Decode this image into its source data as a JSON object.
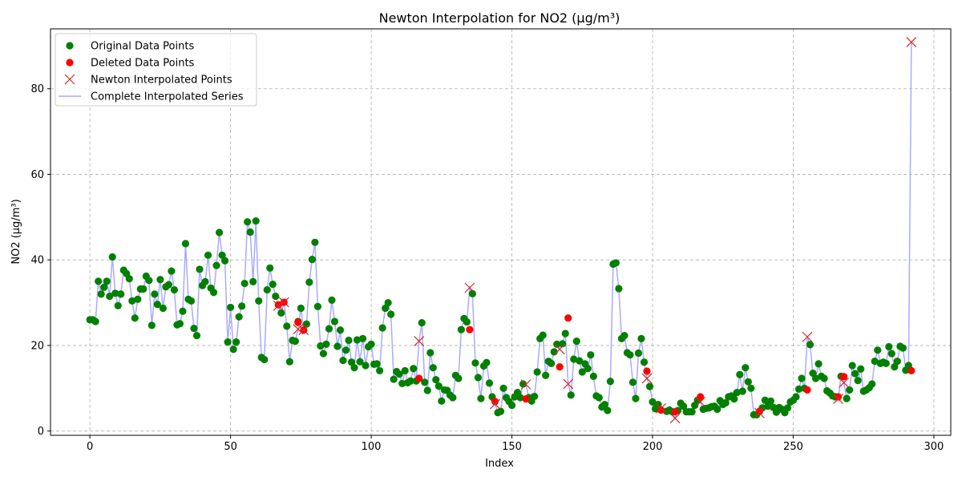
{
  "chart_data": {
    "type": "line",
    "title": "Newton Interpolation for NO2 (μg/m³)",
    "xlabel": "Index",
    "ylabel": "NO2 (μg/m³)",
    "xlim": [
      -14,
      306
    ],
    "ylim": [
      -1,
      94
    ],
    "xticks": [
      0,
      50,
      100,
      150,
      200,
      250,
      300
    ],
    "yticks": [
      0,
      20,
      40,
      60,
      80
    ],
    "grid": true,
    "legend_position": "upper-left",
    "colors": {
      "original": "#008000",
      "deleted": "#ff0000",
      "newton": "#d62728",
      "complete": "#aaaaff"
    },
    "legend": [
      {
        "label": "Original Data Points",
        "key": "original",
        "marker": "dot"
      },
      {
        "label": "Deleted Data Points",
        "key": "deleted",
        "marker": "dot"
      },
      {
        "label": "Newton Interpolated Points",
        "key": "newton",
        "marker": "x"
      },
      {
        "label": "Complete Interpolated Series",
        "key": "complete",
        "marker": "line"
      }
    ],
    "original_points": [
      [
        0,
        26
      ],
      [
        1,
        26
      ],
      [
        2,
        25.6
      ],
      [
        3,
        35
      ],
      [
        4,
        32
      ],
      [
        5,
        33.6
      ],
      [
        6,
        35
      ],
      [
        7,
        31.5
      ],
      [
        8,
        40.7
      ],
      [
        9,
        32.2
      ],
      [
        10,
        29.3
      ],
      [
        11,
        32
      ],
      [
        12,
        37.6
      ],
      [
        13,
        36.8
      ],
      [
        14,
        35.6
      ],
      [
        15,
        30.4
      ],
      [
        16,
        26.4
      ],
      [
        17,
        30.8
      ],
      [
        18,
        33.2
      ],
      [
        19,
        33.2
      ],
      [
        20,
        36.2
      ],
      [
        21,
        35.2
      ],
      [
        22,
        24.7
      ],
      [
        23,
        32
      ],
      [
        24,
        29.6
      ],
      [
        25,
        35.4
      ],
      [
        26,
        28.7
      ],
      [
        27,
        33.7
      ],
      [
        28,
        34.2
      ],
      [
        29,
        37.4
      ],
      [
        30,
        33
      ],
      [
        31,
        24.8
      ],
      [
        32,
        25.1
      ],
      [
        33,
        28
      ],
      [
        34,
        43.8
      ],
      [
        35,
        30.8
      ],
      [
        36,
        30.4
      ],
      [
        37,
        24
      ],
      [
        38,
        22.3
      ],
      [
        39,
        37.8
      ],
      [
        40,
        34
      ],
      [
        41,
        34.9
      ],
      [
        42,
        41.1
      ],
      [
        43,
        33.4
      ],
      [
        44,
        32.4
      ],
      [
        45,
        38.7
      ],
      [
        46,
        46.4
      ],
      [
        47,
        41.1
      ],
      [
        48,
        39.8
      ],
      [
        49,
        20.8
      ],
      [
        50,
        28.9
      ],
      [
        51,
        19.1
      ],
      [
        52,
        20.8
      ],
      [
        53,
        26.7
      ],
      [
        54,
        29.2
      ],
      [
        55,
        34.5
      ],
      [
        56,
        48.9
      ],
      [
        57,
        46.5
      ],
      [
        58,
        34.9
      ],
      [
        59,
        49.1
      ],
      [
        60,
        30.4
      ],
      [
        61,
        17.2
      ],
      [
        62,
        16.7
      ],
      [
        63,
        33
      ],
      [
        64,
        38.1
      ],
      [
        65,
        34.3
      ],
      [
        66,
        31.5
      ],
      [
        68,
        27.6
      ],
      [
        70,
        24.5
      ],
      [
        71,
        16.2
      ],
      [
        72,
        21.2
      ],
      [
        73,
        21
      ],
      [
        74,
        25.6
      ],
      [
        75,
        28.7
      ],
      [
        77,
        25
      ],
      [
        78,
        34.8
      ],
      [
        79,
        40.1
      ],
      [
        80,
        44.1
      ],
      [
        81,
        29.1
      ],
      [
        82,
        19.9
      ],
      [
        83,
        18.1
      ],
      [
        84,
        20.3
      ],
      [
        85,
        23.9
      ],
      [
        86,
        30.6
      ],
      [
        87,
        25.6
      ],
      [
        88,
        19.8
      ],
      [
        89,
        23.6
      ],
      [
        90,
        16.5
      ],
      [
        91,
        18.9
      ],
      [
        92,
        21.2
      ],
      [
        93,
        16.1
      ],
      [
        94,
        14.8
      ],
      [
        95,
        21.3
      ],
      [
        96,
        16.2
      ],
      [
        97,
        21.6
      ],
      [
        98,
        15.3
      ],
      [
        99,
        19.7
      ],
      [
        100,
        20.3
      ],
      [
        101,
        15.6
      ],
      [
        102,
        15.7
      ],
      [
        103,
        14.1
      ],
      [
        104,
        24.1
      ],
      [
        105,
        28.7
      ],
      [
        106,
        30
      ],
      [
        107,
        27.3
      ],
      [
        108,
        12.1
      ],
      [
        109,
        13.9
      ],
      [
        110,
        13.3
      ],
      [
        111,
        11.1
      ],
      [
        112,
        14.1
      ],
      [
        113,
        11.3
      ],
      [
        114,
        11.7
      ],
      [
        115,
        14.6
      ],
      [
        116,
        11.7
      ],
      [
        118,
        25.3
      ],
      [
        119,
        11.4
      ],
      [
        120,
        9.5
      ],
      [
        121,
        18.3
      ],
      [
        122,
        14.8
      ],
      [
        123,
        12
      ],
      [
        124,
        10.5
      ],
      [
        125,
        7
      ],
      [
        126,
        9.6
      ],
      [
        127,
        9.5
      ],
      [
        128,
        8.4
      ],
      [
        129,
        7.8
      ],
      [
        130,
        13
      ],
      [
        131,
        12.3
      ],
      [
        132,
        23.7
      ],
      [
        133,
        26.3
      ],
      [
        134,
        25.5
      ],
      [
        136,
        32.1
      ],
      [
        137,
        15.9
      ],
      [
        138,
        12.5
      ],
      [
        139,
        7.6
      ],
      [
        140,
        15.2
      ],
      [
        141,
        16
      ],
      [
        142,
        11.2
      ],
      [
        143,
        8
      ],
      [
        145,
        4.3
      ],
      [
        146,
        4.6
      ],
      [
        147,
        10
      ],
      [
        148,
        7.8
      ],
      [
        149,
        6.9
      ],
      [
        150,
        6
      ],
      [
        151,
        8
      ],
      [
        152,
        9
      ],
      [
        153,
        7.8
      ],
      [
        154,
        11
      ],
      [
        156,
        7.8
      ],
      [
        157,
        7
      ],
      [
        158,
        8.1
      ],
      [
        159,
        13.8
      ],
      [
        160,
        21.6
      ],
      [
        161,
        22.4
      ],
      [
        162,
        13
      ],
      [
        163,
        16.3
      ],
      [
        164,
        15.8
      ],
      [
        165,
        18.5
      ],
      [
        166,
        20.3
      ],
      [
        168,
        20.4
      ],
      [
        169,
        22.8
      ],
      [
        171,
        8.4
      ],
      [
        172,
        16.8
      ],
      [
        173,
        21
      ],
      [
        174,
        16.4
      ],
      [
        175,
        13.8
      ],
      [
        176,
        15.7
      ],
      [
        177,
        14.6
      ],
      [
        178,
        17.8
      ],
      [
        179,
        12.8
      ],
      [
        180,
        8.2
      ],
      [
        181,
        7.8
      ],
      [
        182,
        5.6
      ],
      [
        183,
        6.2
      ],
      [
        184,
        4.8
      ],
      [
        185,
        11.6
      ],
      [
        186,
        39
      ],
      [
        187,
        39.3
      ],
      [
        188,
        33.3
      ],
      [
        189,
        21.6
      ],
      [
        190,
        22.3
      ],
      [
        191,
        18.3
      ],
      [
        192,
        17.8
      ],
      [
        193,
        11.4
      ],
      [
        194,
        7.6
      ],
      [
        195,
        18.2
      ],
      [
        196,
        21.6
      ],
      [
        197,
        16.1
      ],
      [
        199,
        10.4
      ],
      [
        200,
        6.8
      ],
      [
        201,
        5.2
      ],
      [
        202,
        6.2
      ],
      [
        205,
        4.6
      ],
      [
        206,
        4.9
      ],
      [
        207,
        4.5
      ],
      [
        209,
        4.8
      ],
      [
        210,
        6.5
      ],
      [
        211,
        5.8
      ],
      [
        212,
        4.5
      ],
      [
        213,
        4.5
      ],
      [
        214,
        4.5
      ],
      [
        215,
        6
      ],
      [
        216,
        7.2
      ],
      [
        218,
        5.1
      ],
      [
        219,
        5.3
      ],
      [
        220,
        5.4
      ],
      [
        221,
        5.7
      ],
      [
        222,
        5.8
      ],
      [
        223,
        5.1
      ],
      [
        224,
        7.1
      ],
      [
        225,
        6.2
      ],
      [
        226,
        6.6
      ],
      [
        227,
        8
      ],
      [
        228,
        8.2
      ],
      [
        229,
        7.5
      ],
      [
        230,
        9
      ],
      [
        231,
        13.2
      ],
      [
        232,
        9.3
      ],
      [
        233,
        14.8
      ],
      [
        234,
        11.5
      ],
      [
        235,
        10
      ],
      [
        236,
        3.8
      ],
      [
        237,
        3.8
      ],
      [
        239,
        5.4
      ],
      [
        240,
        7.2
      ],
      [
        241,
        5.8
      ],
      [
        242,
        7
      ],
      [
        243,
        5.5
      ],
      [
        244,
        4.4
      ],
      [
        245,
        5.5
      ],
      [
        246,
        5.1
      ],
      [
        247,
        4.3
      ],
      [
        248,
        5.4
      ],
      [
        249,
        6.8
      ],
      [
        250,
        7.2
      ],
      [
        251,
        8
      ],
      [
        252,
        9.8
      ],
      [
        253,
        12.3
      ],
      [
        254,
        10
      ],
      [
        256,
        20.2
      ],
      [
        257,
        13.5
      ],
      [
        258,
        12.3
      ],
      [
        259,
        15.7
      ],
      [
        260,
        12.8
      ],
      [
        261,
        12.3
      ],
      [
        262,
        9.4
      ],
      [
        263,
        8.9
      ],
      [
        264,
        8.2
      ],
      [
        265,
        8
      ],
      [
        267,
        12.8
      ],
      [
        269,
        7.6
      ],
      [
        270,
        9.6
      ],
      [
        271,
        15.3
      ],
      [
        272,
        13.4
      ],
      [
        273,
        11.8
      ],
      [
        274,
        14.5
      ],
      [
        275,
        9.3
      ],
      [
        276,
        9.6
      ],
      [
        277,
        10.1
      ],
      [
        278,
        11
      ],
      [
        279,
        16.3
      ],
      [
        280,
        18.9
      ],
      [
        281,
        15.8
      ],
      [
        282,
        16.1
      ],
      [
        283,
        15.8
      ],
      [
        284,
        19.7
      ],
      [
        285,
        18.1
      ],
      [
        286,
        15
      ],
      [
        287,
        16.3
      ],
      [
        288,
        19.8
      ],
      [
        289,
        19.4
      ],
      [
        290,
        14.2
      ],
      [
        291,
        15.3
      ]
    ],
    "deleted_points": [
      [
        67,
        29.5
      ],
      [
        69,
        30.1
      ],
      [
        74,
        25.4
      ],
      [
        76,
        23.6
      ],
      [
        117,
        12.3
      ],
      [
        135,
        23.7
      ],
      [
        144,
        6.9
      ],
      [
        155,
        7.5
      ],
      [
        167,
        15
      ],
      [
        170,
        26.4
      ],
      [
        198,
        14
      ],
      [
        203,
        4.9
      ],
      [
        208,
        4.5
      ],
      [
        217,
        8
      ],
      [
        238,
        4.6
      ],
      [
        255,
        9.6
      ],
      [
        266,
        8
      ],
      [
        268,
        12.7
      ],
      [
        292,
        14.1
      ]
    ],
    "newton_points": [
      [
        67,
        29.3
      ],
      [
        69,
        30.1
      ],
      [
        74,
        23.8
      ],
      [
        76,
        23.6
      ],
      [
        117,
        21
      ],
      [
        135,
        33.5
      ],
      [
        144,
        6.3
      ],
      [
        155,
        10.9
      ],
      [
        167,
        19.1
      ],
      [
        170,
        11
      ],
      [
        198,
        12.3
      ],
      [
        203,
        5.3
      ],
      [
        208,
        3
      ],
      [
        217,
        6.8
      ],
      [
        238,
        4.2
      ],
      [
        255,
        22
      ],
      [
        266,
        7.5
      ],
      [
        268,
        11.3
      ],
      [
        292,
        90.9
      ]
    ]
  }
}
